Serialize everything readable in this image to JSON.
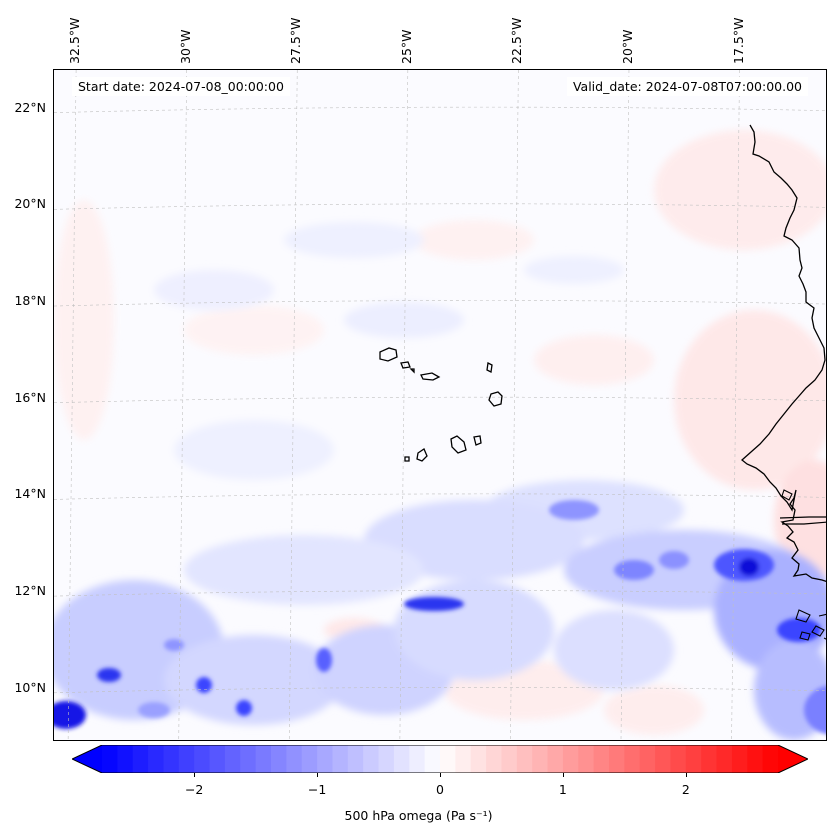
{
  "map": {
    "start_label": "Start date: 2024-07-08_00:00:00",
    "valid_label": "Valid_date: 2024-07-08T07:00:00.00",
    "extent": {
      "lon_min": -33.0,
      "lon_max": -15.5,
      "lat_min": 8.9,
      "lat_max": 22.8
    },
    "lon_ticks": [
      {
        "lon": -32.5,
        "label": "32.5°W"
      },
      {
        "lon": -30.0,
        "label": "30°W"
      },
      {
        "lon": -27.5,
        "label": "27.5°W"
      },
      {
        "lon": -25.0,
        "label": "25°W"
      },
      {
        "lon": -22.5,
        "label": "22.5°W"
      },
      {
        "lon": -20.0,
        "label": "20°W"
      },
      {
        "lon": -17.5,
        "label": "17.5°W"
      }
    ],
    "lat_ticks": [
      {
        "lat": 22,
        "label": "22°N"
      },
      {
        "lat": 20,
        "label": "20°N"
      },
      {
        "lat": 18,
        "label": "18°N"
      },
      {
        "lat": 16,
        "label": "16°N"
      },
      {
        "lat": 14,
        "label": "14°N"
      },
      {
        "lat": 12,
        "label": "12°N"
      },
      {
        "lat": 10,
        "label": "10°N"
      }
    ],
    "gridlines": true,
    "colormap": "bwr",
    "colors": {
      "negative": "#0000ff",
      "neutral": "#ffffff",
      "positive": "#ff0000",
      "coastline": "#000000",
      "grid": "#c0c0c0"
    }
  },
  "colorbar": {
    "min": -2.75,
    "max": 2.75,
    "extend": "both",
    "ticks": [
      {
        "value": -2,
        "label": "−2"
      },
      {
        "value": -1,
        "label": "−1"
      },
      {
        "value": 0,
        "label": "0"
      },
      {
        "value": 1,
        "label": "1"
      },
      {
        "value": 2,
        "label": "2"
      }
    ],
    "label": "500 hPa omega (Pa s⁻¹)"
  }
}
